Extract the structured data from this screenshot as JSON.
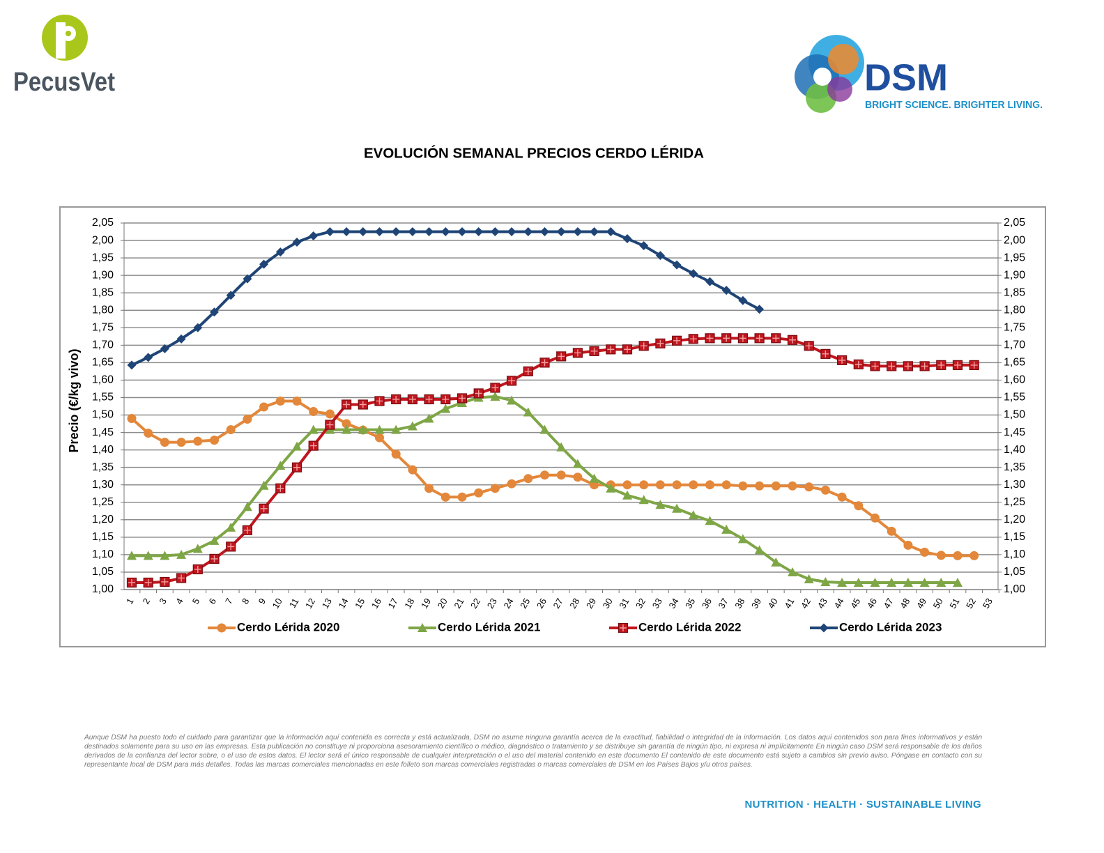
{
  "header": {
    "left_logo": "PecusVet",
    "right_logo": "DSM",
    "right_tagline": "BRIGHT SCIENCE. BRIGHTER LIVING."
  },
  "chart_data": {
    "type": "line",
    "title": "EVOLUCIÓN SEMANAL PRECIOS CERDO LÉRIDA",
    "y_label": "Precio (€/kg vivo)",
    "categories": [
      "1",
      "2",
      "3",
      "4",
      "5",
      "6",
      "7",
      "8",
      "9",
      "10",
      "11",
      "12",
      "13",
      "14",
      "15",
      "16",
      "17",
      "18",
      "19",
      "20",
      "21",
      "22",
      "23",
      "24",
      "25",
      "26",
      "27",
      "28",
      "29",
      "30",
      "31",
      "32",
      "33",
      "34",
      "35",
      "36",
      "37",
      "38",
      "39",
      "40",
      "41",
      "42",
      "43",
      "44",
      "45",
      "46",
      "47",
      "48",
      "49",
      "50",
      "51",
      "52",
      "53"
    ],
    "series": [
      {
        "name": "Cerdo Lérida 2020",
        "color": "#e3873a",
        "marker": "circle",
        "values": [
          1.49,
          1.448,
          1.422,
          1.422,
          1.425,
          1.428,
          1.458,
          1.488,
          1.523,
          1.54,
          1.54,
          1.51,
          1.503,
          1.475,
          1.457,
          1.435,
          1.388,
          1.343,
          1.29,
          1.265,
          1.265,
          1.277,
          1.29,
          1.303,
          1.318,
          1.328,
          1.328,
          1.322,
          1.3,
          1.3,
          1.3,
          1.3,
          1.3,
          1.3,
          1.3,
          1.3,
          1.3,
          1.297,
          1.297,
          1.297,
          1.297,
          1.294,
          1.285,
          1.265,
          1.24,
          1.205,
          1.167,
          1.127,
          1.107,
          1.098,
          1.097,
          1.097,
          null
        ]
      },
      {
        "name": "Cerdo Lérida 2021",
        "color": "#7ea646",
        "marker": "triangle",
        "values": [
          1.097,
          1.097,
          1.097,
          1.1,
          1.117,
          1.14,
          1.178,
          1.237,
          1.298,
          1.355,
          1.41,
          1.458,
          1.458,
          1.458,
          1.458,
          1.458,
          1.458,
          1.468,
          1.49,
          1.518,
          1.535,
          1.55,
          1.553,
          1.542,
          1.508,
          1.458,
          1.408,
          1.36,
          1.318,
          1.29,
          1.27,
          1.257,
          1.243,
          1.232,
          1.213,
          1.197,
          1.172,
          1.145,
          1.113,
          1.078,
          1.05,
          1.03,
          1.022,
          1.02,
          1.02,
          1.02,
          1.02,
          1.02,
          1.02,
          1.02,
          1.02,
          null,
          null
        ]
      },
      {
        "name": "Cerdo Lérida 2022",
        "color": "#c0161e",
        "marker": "square",
        "values": [
          1.02,
          1.02,
          1.022,
          1.033,
          1.058,
          1.088,
          1.123,
          1.17,
          1.232,
          1.29,
          1.35,
          1.412,
          1.472,
          1.53,
          1.53,
          1.54,
          1.545,
          1.545,
          1.545,
          1.545,
          1.548,
          1.562,
          1.578,
          1.598,
          1.625,
          1.65,
          1.668,
          1.678,
          1.683,
          1.688,
          1.688,
          1.698,
          1.705,
          1.713,
          1.718,
          1.72,
          1.72,
          1.72,
          1.72,
          1.72,
          1.715,
          1.698,
          1.675,
          1.657,
          1.645,
          1.64,
          1.64,
          1.64,
          1.64,
          1.643,
          1.643,
          1.643,
          null
        ]
      },
      {
        "name": "Cerdo Lérida 2023",
        "color": "#1f4577",
        "marker": "diamond",
        "values": [
          1.643,
          1.665,
          1.69,
          1.718,
          1.75,
          1.795,
          1.843,
          1.89,
          1.932,
          1.967,
          1.995,
          2.013,
          2.025,
          2.025,
          2.025,
          2.025,
          2.025,
          2.025,
          2.025,
          2.025,
          2.025,
          2.025,
          2.025,
          2.025,
          2.025,
          2.025,
          2.025,
          2.025,
          2.025,
          2.025,
          2.005,
          1.985,
          1.957,
          1.93,
          1.905,
          1.882,
          1.857,
          1.828,
          1.803,
          null,
          null,
          null,
          null,
          null,
          null,
          null,
          null,
          null,
          null,
          null,
          null,
          null,
          null
        ]
      }
    ],
    "ylim": [
      1,
      2.05
    ],
    "yticks": [
      {
        "value": 1,
        "label": "1,00"
      },
      {
        "value": 1.05,
        "label": "1,05"
      },
      {
        "value": 1.1,
        "label": "1,10"
      },
      {
        "value": 1.15,
        "label": "1,15"
      },
      {
        "value": 1.2,
        "label": "1,20"
      },
      {
        "value": 1.25,
        "label": "1,25"
      },
      {
        "value": 1.3,
        "label": "1,30"
      },
      {
        "value": 1.35,
        "label": "1,35"
      },
      {
        "value": 1.4,
        "label": "1,40"
      },
      {
        "value": 1.45,
        "label": "1,45"
      },
      {
        "value": 1.5,
        "label": "1,50"
      },
      {
        "value": 1.55,
        "label": "1,55"
      },
      {
        "value": 1.6,
        "label": "1,60"
      },
      {
        "value": 1.65,
        "label": "1,65"
      },
      {
        "value": 1.7,
        "label": "1,70"
      },
      {
        "value": 1.75,
        "label": "1,75"
      },
      {
        "value": 1.8,
        "label": "1,80"
      },
      {
        "value": 1.85,
        "label": "1,85"
      },
      {
        "value": 1.9,
        "label": "1,90"
      },
      {
        "value": 1.95,
        "label": "1,95"
      },
      {
        "value": 2,
        "label": "2,00"
      },
      {
        "value": 2.05,
        "label": "2,05"
      }
    ],
    "y2lim": [
      1,
      2.05
    ],
    "y2ticks": [
      {
        "value": 1,
        "label": "1,00"
      },
      {
        "value": 1.05,
        "label": "1,05"
      },
      {
        "value": 1.1,
        "label": "1,10"
      },
      {
        "value": 1.15,
        "label": "1,15"
      },
      {
        "value": 1.2,
        "label": "1,20"
      },
      {
        "value": 1.25,
        "label": "1,25"
      },
      {
        "value": 1.3,
        "label": "1,30"
      },
      {
        "value": 1.35,
        "label": "1,35"
      },
      {
        "value": 1.4,
        "label": "1,40"
      },
      {
        "value": 1.45,
        "label": "1,45"
      },
      {
        "value": 1.5,
        "label": "1,50"
      },
      {
        "value": 1.55,
        "label": "1,55"
      },
      {
        "value": 1.6,
        "label": "1,60"
      },
      {
        "value": 1.65,
        "label": "1,65"
      },
      {
        "value": 1.7,
        "label": "1,70"
      },
      {
        "value": 1.75,
        "label": "1,75"
      },
      {
        "value": 1.8,
        "label": "1,80"
      },
      {
        "value": 1.85,
        "label": "1,85"
      },
      {
        "value": 1.9,
        "label": "1,90"
      },
      {
        "value": 1.95,
        "label": "1,95"
      },
      {
        "value": 2,
        "label": "2,00"
      },
      {
        "value": 2.05,
        "label": "2,05"
      }
    ],
    "grid": true,
    "legend": "bottom"
  },
  "disclaimer": "Aunque DSM ha puesto todo el cuidado para garantizar que la información aquí contenida es correcta y está actualizada, DSM no asume ninguna garantía acerca de la exactitud, fiabilidad o integridad de la información. Los datos aquí contenidos son para fines informativos y están destinados solamente para su uso en las empresas. Esta publicación no constituye ni proporciona asesoramiento científico o médico, diagnóstico o tratamiento y se distribuye sin garantía de ningún tipo, ni expresa ni implícitamente En ningún caso DSM será responsable de los daños derivados de la confianza del lector sobre, o el uso de estos datos. El lector será el único responsable de cualquier interpretación o el uso del material contenido en este documento El contenido de este documento está sujeto a cambios sin previo aviso. Póngase en contacto con su representante local de DSM para más detalles. Todas las marcas comerciales mencionadas en este folleto son marcas comerciales registradas o marcas comerciales de DSM en los Países Bajos y/u otros países.",
  "footer": "NUTRITION · HEALTH · SUSTAINABLE LIVING"
}
